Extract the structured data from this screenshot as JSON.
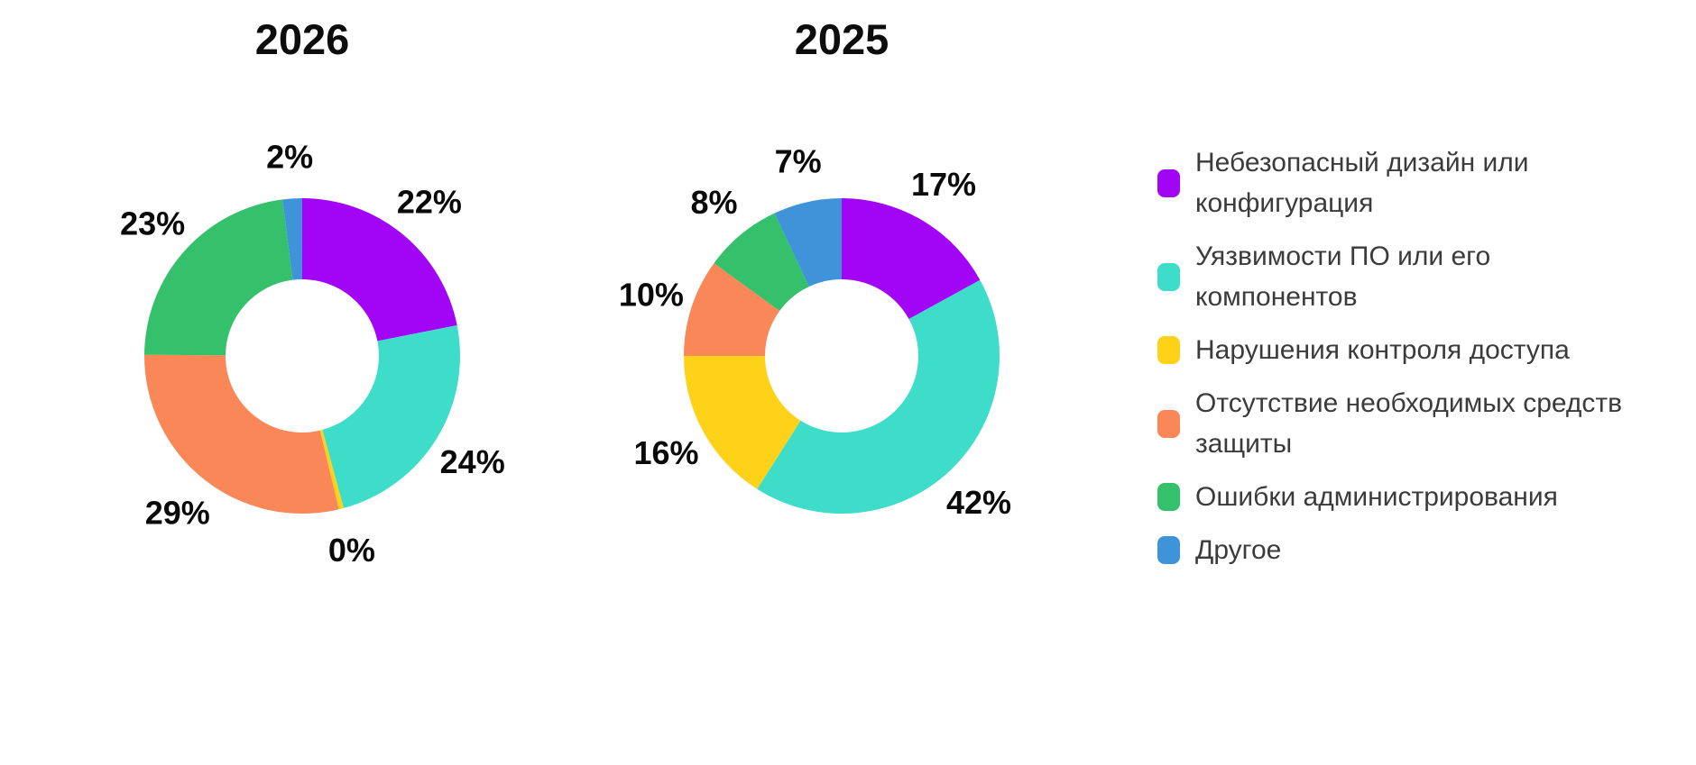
{
  "chart_data": [
    {
      "type": "pie",
      "subtype": "donut",
      "title": "2026",
      "unit": "%",
      "direction": "clockwise",
      "start_angle": "12 o'clock",
      "categories": [
        "Небезопасный дизайн или конфигурация",
        "Уязвимости ПО или его компонентов",
        "Нарушения контроля доступа",
        "Отсутствие необходимых средств защиты",
        "Ошибки администрирования",
        "Другое"
      ],
      "values": [
        22,
        24,
        0,
        29,
        23,
        2
      ],
      "labels": [
        "22%",
        "24%",
        "0%",
        "29%",
        "23%",
        "2%"
      ],
      "colors": [
        "#a204f5",
        "#3eddca",
        "#ffd21a",
        "#f98757",
        "#35c06c",
        "#3e93d9"
      ],
      "legend_position": "right"
    },
    {
      "type": "pie",
      "subtype": "donut",
      "title": "2025",
      "unit": "%",
      "direction": "clockwise",
      "start_angle": "12 o'clock",
      "categories": [
        "Небезопасный дизайн или конфигурация",
        "Уязвимости ПО или его компонентов",
        "Нарушения контроля доступа",
        "Отсутствие необходимых средств защиты",
        "Ошибки администрирования",
        "Другое"
      ],
      "values": [
        17,
        42,
        16,
        10,
        8,
        7
      ],
      "labels": [
        "17%",
        "42%",
        "16%",
        "10%",
        "8%",
        "7%"
      ],
      "colors": [
        "#a204f5",
        "#3eddca",
        "#ffd21a",
        "#f98757",
        "#35c06c",
        "#3e93d9"
      ],
      "legend_position": "right"
    }
  ],
  "legend": {
    "position": "right",
    "items": [
      {
        "label": "Небезопасный дизайн или\nконфигурация",
        "color": "#a204f5"
      },
      {
        "label": "Уязвимости ПО или его\nкомпонентов",
        "color": "#3eddca"
      },
      {
        "label": "Нарушения контроля доступа",
        "color": "#ffd21a"
      },
      {
        "label": "Отсутствие необходимых средств\nзащиты",
        "color": "#f98757"
      },
      {
        "label": "Ошибки администрирования",
        "color": "#35c06c"
      },
      {
        "label": "Другое",
        "color": "#3e93d9"
      }
    ]
  },
  "style": {
    "background": "#ffffff",
    "title_color": "#0d0d0d",
    "percent_label_color": "#0a0a0a",
    "legend_text_color": "#3b3b3b"
  }
}
